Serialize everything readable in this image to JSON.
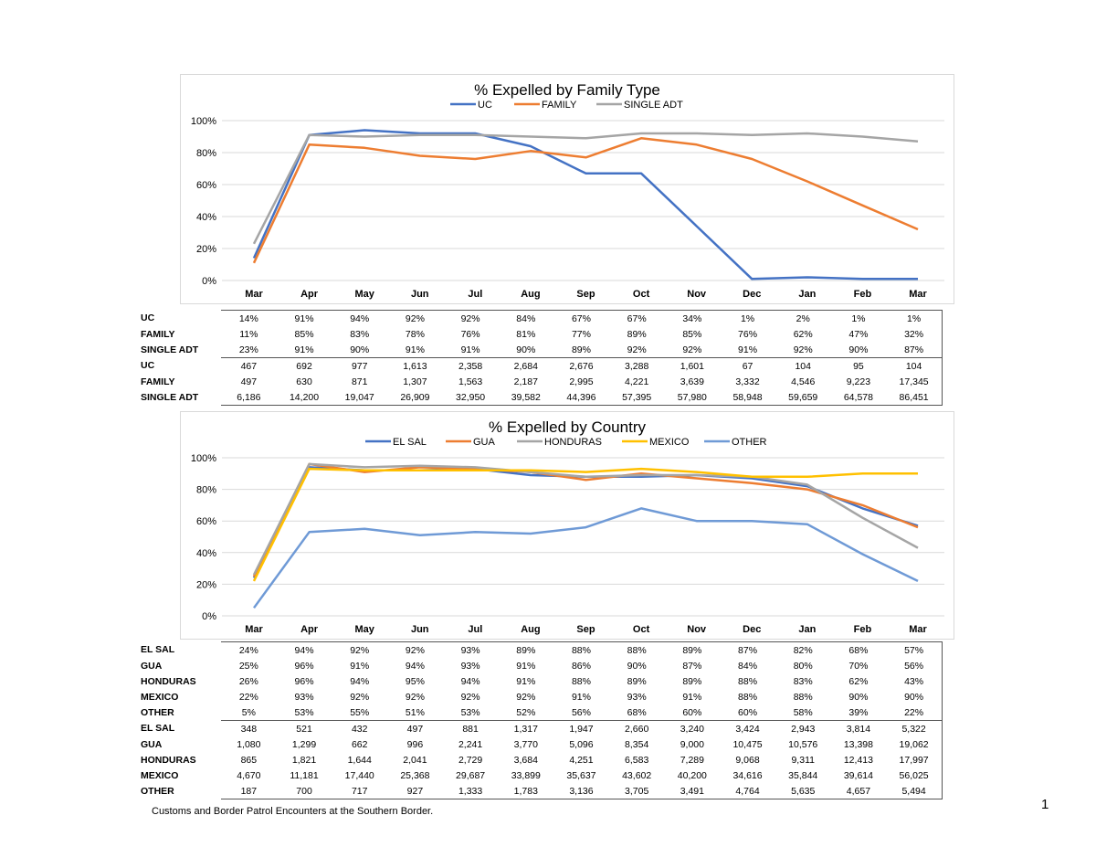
{
  "months": [
    "Mar",
    "Apr",
    "May",
    "Jun",
    "Jul",
    "Aug",
    "Sep",
    "Oct",
    "Nov",
    "Dec",
    "Jan",
    "Feb",
    "Mar"
  ],
  "chart_data": [
    {
      "type": "line",
      "title": "% Expelled by Family Type",
      "categories": [
        "Mar",
        "Apr",
        "May",
        "Jun",
        "Jul",
        "Aug",
        "Sep",
        "Oct",
        "Nov",
        "Dec",
        "Jan",
        "Feb",
        "Mar"
      ],
      "ylim": [
        0,
        100
      ],
      "yticks": [
        "0%",
        "20%",
        "40%",
        "60%",
        "80%",
        "100%"
      ],
      "grid": true,
      "legend": "top",
      "series": [
        {
          "name": "UC",
          "color": "#4472c4",
          "values": [
            14,
            91,
            94,
            92,
            92,
            84,
            67,
            67,
            34,
            1,
            2,
            1,
            1
          ]
        },
        {
          "name": "FAMILY",
          "color": "#ed7d31",
          "values": [
            11,
            85,
            83,
            78,
            76,
            81,
            77,
            89,
            85,
            76,
            62,
            47,
            32
          ]
        },
        {
          "name": "SINGLE ADT",
          "color": "#a5a5a5",
          "values": [
            23,
            91,
            90,
            91,
            91,
            90,
            89,
            92,
            92,
            91,
            92,
            90,
            87
          ]
        }
      ]
    },
    {
      "type": "line",
      "title": "% Expelled by Country",
      "categories": [
        "Mar",
        "Apr",
        "May",
        "Jun",
        "Jul",
        "Aug",
        "Sep",
        "Oct",
        "Nov",
        "Dec",
        "Jan",
        "Feb",
        "Mar"
      ],
      "ylim": [
        0,
        100
      ],
      "yticks": [
        "0%",
        "20%",
        "40%",
        "60%",
        "80%",
        "100%"
      ],
      "grid": true,
      "legend": "top",
      "series": [
        {
          "name": "EL SAL",
          "color": "#4472c4",
          "values": [
            24,
            94,
            92,
            92,
            93,
            89,
            88,
            88,
            89,
            87,
            82,
            68,
            57
          ]
        },
        {
          "name": "GUA",
          "color": "#ed7d31",
          "values": [
            25,
            96,
            91,
            94,
            93,
            91,
            86,
            90,
            87,
            84,
            80,
            70,
            56
          ]
        },
        {
          "name": "HONDURAS",
          "color": "#a5a5a5",
          "values": [
            26,
            96,
            94,
            95,
            94,
            91,
            88,
            89,
            89,
            88,
            83,
            62,
            43
          ]
        },
        {
          "name": "MEXICO",
          "color": "#ffc000",
          "values": [
            22,
            93,
            92,
            92,
            92,
            92,
            91,
            93,
            91,
            88,
            88,
            90,
            90
          ]
        },
        {
          "name": "OTHER",
          "color": "#6f9ad6",
          "values": [
            5,
            53,
            55,
            51,
            53,
            52,
            56,
            68,
            60,
            60,
            58,
            39,
            22
          ]
        }
      ]
    }
  ],
  "table1": [
    {
      "label": "UC",
      "cells": [
        "14%",
        "91%",
        "94%",
        "92%",
        "92%",
        "84%",
        "67%",
        "67%",
        "34%",
        "1%",
        "2%",
        "1%",
        "1%"
      ]
    },
    {
      "label": "FAMILY",
      "cells": [
        "11%",
        "85%",
        "83%",
        "78%",
        "76%",
        "81%",
        "77%",
        "89%",
        "85%",
        "76%",
        "62%",
        "47%",
        "32%"
      ]
    },
    {
      "label": "SINGLE ADT",
      "cells": [
        "23%",
        "91%",
        "90%",
        "91%",
        "91%",
        "90%",
        "89%",
        "92%",
        "92%",
        "91%",
        "92%",
        "90%",
        "87%"
      ]
    },
    {
      "label": "UC",
      "cells": [
        "467",
        "692",
        "977",
        "1,613",
        "2,358",
        "2,684",
        "2,676",
        "3,288",
        "1,601",
        "67",
        "104",
        "95",
        "104"
      ]
    },
    {
      "label": "FAMILY",
      "cells": [
        "497",
        "630",
        "871",
        "1,307",
        "1,563",
        "2,187",
        "2,995",
        "4,221",
        "3,639",
        "3,332",
        "4,546",
        "9,223",
        "17,345"
      ]
    },
    {
      "label": "SINGLE ADT",
      "cells": [
        "6,186",
        "14,200",
        "19,047",
        "26,909",
        "32,950",
        "39,582",
        "44,396",
        "57,395",
        "57,980",
        "58,948",
        "59,659",
        "64,578",
        "86,451"
      ]
    }
  ],
  "table2": [
    {
      "label": "EL SAL",
      "cells": [
        "24%",
        "94%",
        "92%",
        "92%",
        "93%",
        "89%",
        "88%",
        "88%",
        "89%",
        "87%",
        "82%",
        "68%",
        "57%"
      ]
    },
    {
      "label": "GUA",
      "cells": [
        "25%",
        "96%",
        "91%",
        "94%",
        "93%",
        "91%",
        "86%",
        "90%",
        "87%",
        "84%",
        "80%",
        "70%",
        "56%"
      ]
    },
    {
      "label": "HONDURAS",
      "cells": [
        "26%",
        "96%",
        "94%",
        "95%",
        "94%",
        "91%",
        "88%",
        "89%",
        "89%",
        "88%",
        "83%",
        "62%",
        "43%"
      ]
    },
    {
      "label": "MEXICO",
      "cells": [
        "22%",
        "93%",
        "92%",
        "92%",
        "92%",
        "92%",
        "91%",
        "93%",
        "91%",
        "88%",
        "88%",
        "90%",
        "90%"
      ]
    },
    {
      "label": "OTHER",
      "cells": [
        "5%",
        "53%",
        "55%",
        "51%",
        "53%",
        "52%",
        "56%",
        "68%",
        "60%",
        "60%",
        "58%",
        "39%",
        "22%"
      ]
    },
    {
      "label": "EL SAL",
      "cells": [
        "348",
        "521",
        "432",
        "497",
        "881",
        "1,317",
        "1,947",
        "2,660",
        "3,240",
        "3,424",
        "2,943",
        "3,814",
        "5,322"
      ]
    },
    {
      "label": "GUA",
      "cells": [
        "1,080",
        "1,299",
        "662",
        "996",
        "2,241",
        "3,770",
        "5,096",
        "8,354",
        "9,000",
        "10,475",
        "10,576",
        "13,398",
        "19,062"
      ]
    },
    {
      "label": "HONDURAS",
      "cells": [
        "865",
        "1,821",
        "1,644",
        "2,041",
        "2,729",
        "3,684",
        "4,251",
        "6,583",
        "7,289",
        "9,068",
        "9,311",
        "12,413",
        "17,997"
      ]
    },
    {
      "label": "MEXICO",
      "cells": [
        "4,670",
        "11,181",
        "17,440",
        "25,368",
        "29,687",
        "33,899",
        "35,637",
        "43,602",
        "40,200",
        "34,616",
        "35,844",
        "39,614",
        "56,025"
      ]
    },
    {
      "label": "OTHER",
      "cells": [
        "187",
        "700",
        "717",
        "927",
        "1,333",
        "1,783",
        "3,136",
        "3,705",
        "3,491",
        "4,764",
        "5,635",
        "4,657",
        "5,494"
      ]
    }
  ],
  "footnote": "Customs and Border Patrol Encounters at the Southern Border.",
  "page_number": "1"
}
